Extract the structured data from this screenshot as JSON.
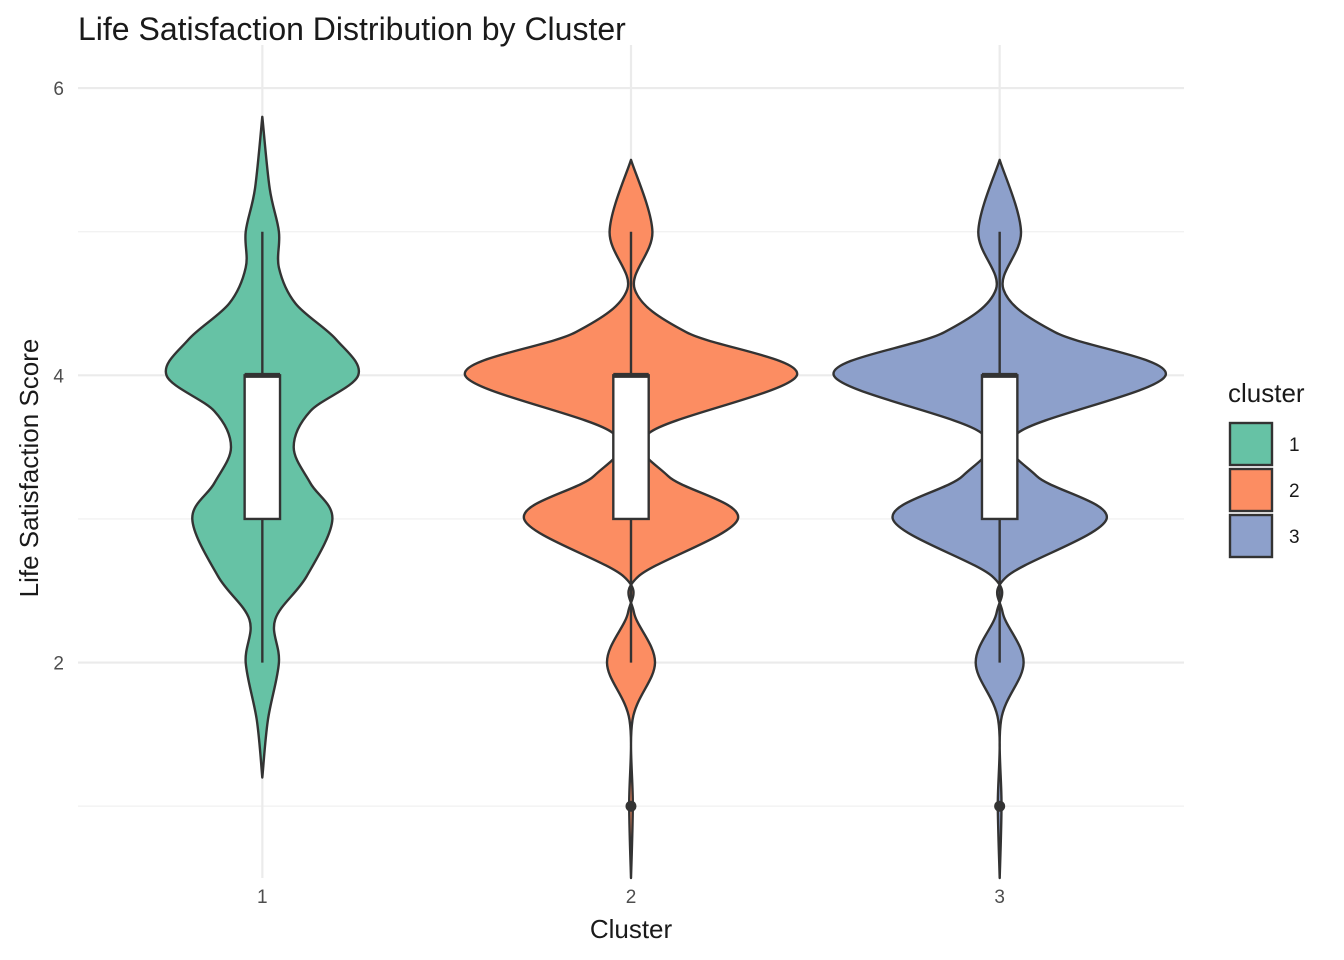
{
  "chart_data": {
    "type": "violin",
    "title": "Life Satisfaction Distribution by Cluster",
    "xlabel": "Cluster",
    "ylabel": "Life Satisfaction Score",
    "categories": [
      "1",
      "2",
      "3"
    ],
    "ylim": [
      0.5,
      6.3
    ],
    "y_ticks": [
      2,
      4,
      6
    ],
    "y_tick_labels": [
      "2",
      "4",
      "6"
    ],
    "grid": true,
    "legend": {
      "title": "cluster",
      "position": "right",
      "entries": [
        "1",
        "2",
        "3"
      ]
    },
    "colors": [
      "#66C2A5",
      "#FC8D62",
      "#8DA0CB"
    ],
    "series": [
      {
        "category": "1",
        "y_range": [
          1.2,
          5.8
        ],
        "density": [
          [
            1.2,
            0.0
          ],
          [
            1.6,
            0.015
          ],
          [
            2.0,
            0.045
          ],
          [
            2.3,
            0.035
          ],
          [
            2.6,
            0.12
          ],
          [
            3.0,
            0.19
          ],
          [
            3.25,
            0.13
          ],
          [
            3.5,
            0.085
          ],
          [
            3.75,
            0.13
          ],
          [
            4.0,
            0.26
          ],
          [
            4.25,
            0.2
          ],
          [
            4.5,
            0.09
          ],
          [
            4.75,
            0.045
          ],
          [
            5.0,
            0.045
          ],
          [
            5.3,
            0.02
          ],
          [
            5.8,
            0.0
          ]
        ],
        "box": {
          "q1": 3,
          "median": 4,
          "q3": 4,
          "whisker_low": 2,
          "whisker_high": 5
        },
        "outliers": []
      },
      {
        "category": "2",
        "y_range": [
          0.5,
          5.5
        ],
        "density": [
          [
            0.5,
            0.0
          ],
          [
            1.0,
            0.005
          ],
          [
            1.6,
            0.004
          ],
          [
            2.0,
            0.065
          ],
          [
            2.35,
            0.008
          ],
          [
            2.6,
            0.02
          ],
          [
            3.0,
            0.29
          ],
          [
            3.3,
            0.1
          ],
          [
            3.6,
            0.05
          ],
          [
            4.0,
            0.45
          ],
          [
            4.3,
            0.15
          ],
          [
            4.6,
            0.01
          ],
          [
            5.0,
            0.058
          ],
          [
            5.5,
            0.0
          ]
        ],
        "box": {
          "q1": 3,
          "median": 4,
          "q3": 4,
          "whisker_low": 2,
          "whisker_high": 5
        },
        "outliers": [
          1
        ]
      },
      {
        "category": "3",
        "y_range": [
          0.5,
          5.5
        ],
        "density": [
          [
            0.5,
            0.0
          ],
          [
            1.0,
            0.005
          ],
          [
            1.6,
            0.004
          ],
          [
            2.0,
            0.065
          ],
          [
            2.35,
            0.008
          ],
          [
            2.6,
            0.02
          ],
          [
            3.0,
            0.29
          ],
          [
            3.3,
            0.1
          ],
          [
            3.6,
            0.05
          ],
          [
            4.0,
            0.45
          ],
          [
            4.3,
            0.15
          ],
          [
            4.6,
            0.01
          ],
          [
            5.0,
            0.058
          ],
          [
            5.5,
            0.0
          ]
        ],
        "box": {
          "q1": 3,
          "median": 4,
          "q3": 4,
          "whisker_low": 2,
          "whisker_high": 5
        },
        "outliers": [
          1
        ]
      }
    ]
  }
}
